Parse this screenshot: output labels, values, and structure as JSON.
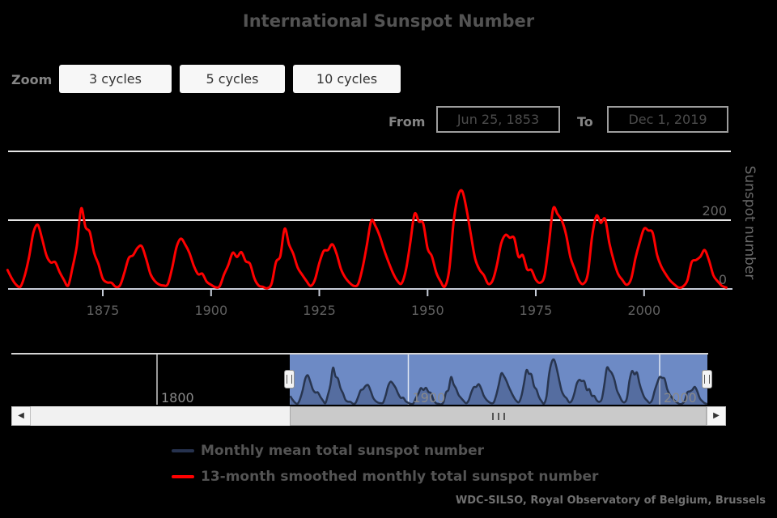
{
  "title": "International Sunspot Number",
  "range_selector": {
    "zoom_label": "Zoom",
    "buttons": [
      {
        "label": "3 cycles"
      },
      {
        "label": "5 cycles"
      },
      {
        "label": "10 cycles"
      }
    ],
    "from_label": "From",
    "from_value": "Jun 25, 1853",
    "to_label": "To",
    "to_value": "Dec 1, 2019"
  },
  "main_chart": {
    "x_ticks": [
      1875,
      1900,
      1925,
      1950,
      1975,
      2000
    ],
    "y_ticks": [
      200,
      0
    ],
    "y_gridlines": [
      200,
      400
    ],
    "y_axis_title": "Sunspot number"
  },
  "navigator": {
    "x_ticks": [
      1800,
      1900,
      2000
    ]
  },
  "scrollbar": {
    "left_arrow_icon": "◀",
    "right_arrow_icon": "▶"
  },
  "legend": [
    {
      "label": "Monthly mean total sunspot number",
      "color": "#26324e"
    },
    {
      "label": "13-month smoothed monthly total sunspot number",
      "color": "#ff0000"
    }
  ],
  "credits": "WDC-SILSO, Royal Observatory of Belgium, Brussels",
  "colors": {
    "background": "#000000",
    "grid": "#e6e6e6",
    "axis_line": "#c7cdd9",
    "x_label": "#606060",
    "y_label": "#666666",
    "axis_title": "#6a6a6a",
    "navigator_mask": "#6d8ac5",
    "navigator_outline": "#d5d5d5",
    "navigator_line": "#28354f",
    "navigator_area": "rgba(15,25,50,0.25)",
    "navigator_gridline": "rgba(255,255,255,0.8)"
  },
  "chart_data": {
    "type": "line",
    "title": "International Sunspot Number",
    "ylabel": "Sunspot number",
    "ylim": [
      0,
      400
    ],
    "xlim": [
      1853.5,
      2019.92
    ],
    "x_tick_years": [
      1875,
      1900,
      1925,
      1950,
      1975,
      2000
    ],
    "grid": "horizontal gridlines at 200 and 400",
    "legend_position": "bottom-left",
    "series": [
      {
        "name": "13-month smoothed monthly total sunspot number",
        "color": "#ff0000",
        "x_start_year": 1853,
        "x_step_years": 1,
        "values": [
          55,
          30,
          12,
          7,
          40,
          95,
          165,
          186,
          145,
          97,
          77,
          78,
          50,
          27,
          10,
          62,
          125,
          234,
          180,
          165,
          105,
          72,
          30,
          19,
          18,
          6,
          11,
          48,
          90,
          98,
          119,
          124,
          88,
          44,
          23,
          13,
          10,
          14,
          60,
          120,
          146,
          130,
          105,
          68,
          43,
          44,
          21,
          12,
          5,
          8,
          42,
          70,
          105,
          93,
          107,
          81,
          73,
          31,
          10,
          6,
          2,
          16,
          78,
          96,
          175,
          130,
          102,
          62,
          42,
          24,
          9,
          27,
          75,
          110,
          113,
          130,
          102,
          58,
          33,
          18,
          9,
          15,
          62,
          128,
          198,
          182,
          152,
          112,
          78,
          47,
          24,
          16,
          55,
          133,
          218,
          196,
          190,
          118,
          95,
          48,
          22,
          7,
          55,
          192,
          268,
          285,
          232,
          158,
          88,
          56,
          40,
          15,
          24,
          68,
          132,
          157,
          149,
          148,
          94,
          98,
          57,
          55,
          27,
          18,
          38,
          128,
          233,
          218,
          199,
          158,
          92,
          57,
          24,
          15,
          43,
          152,
          213,
          192,
          203,
          133,
          82,
          44,
          26,
          12,
          29,
          88,
          136,
          175,
          170,
          163,
          99,
          65,
          43,
          25,
          13,
          4,
          7,
          25,
          78,
          84,
          94,
          113,
          83,
          40,
          22,
          9,
          4
        ]
      },
      {
        "name": "Monthly mean total sunspot number",
        "color": "#26324e",
        "shown_in": "navigator"
      }
    ]
  }
}
